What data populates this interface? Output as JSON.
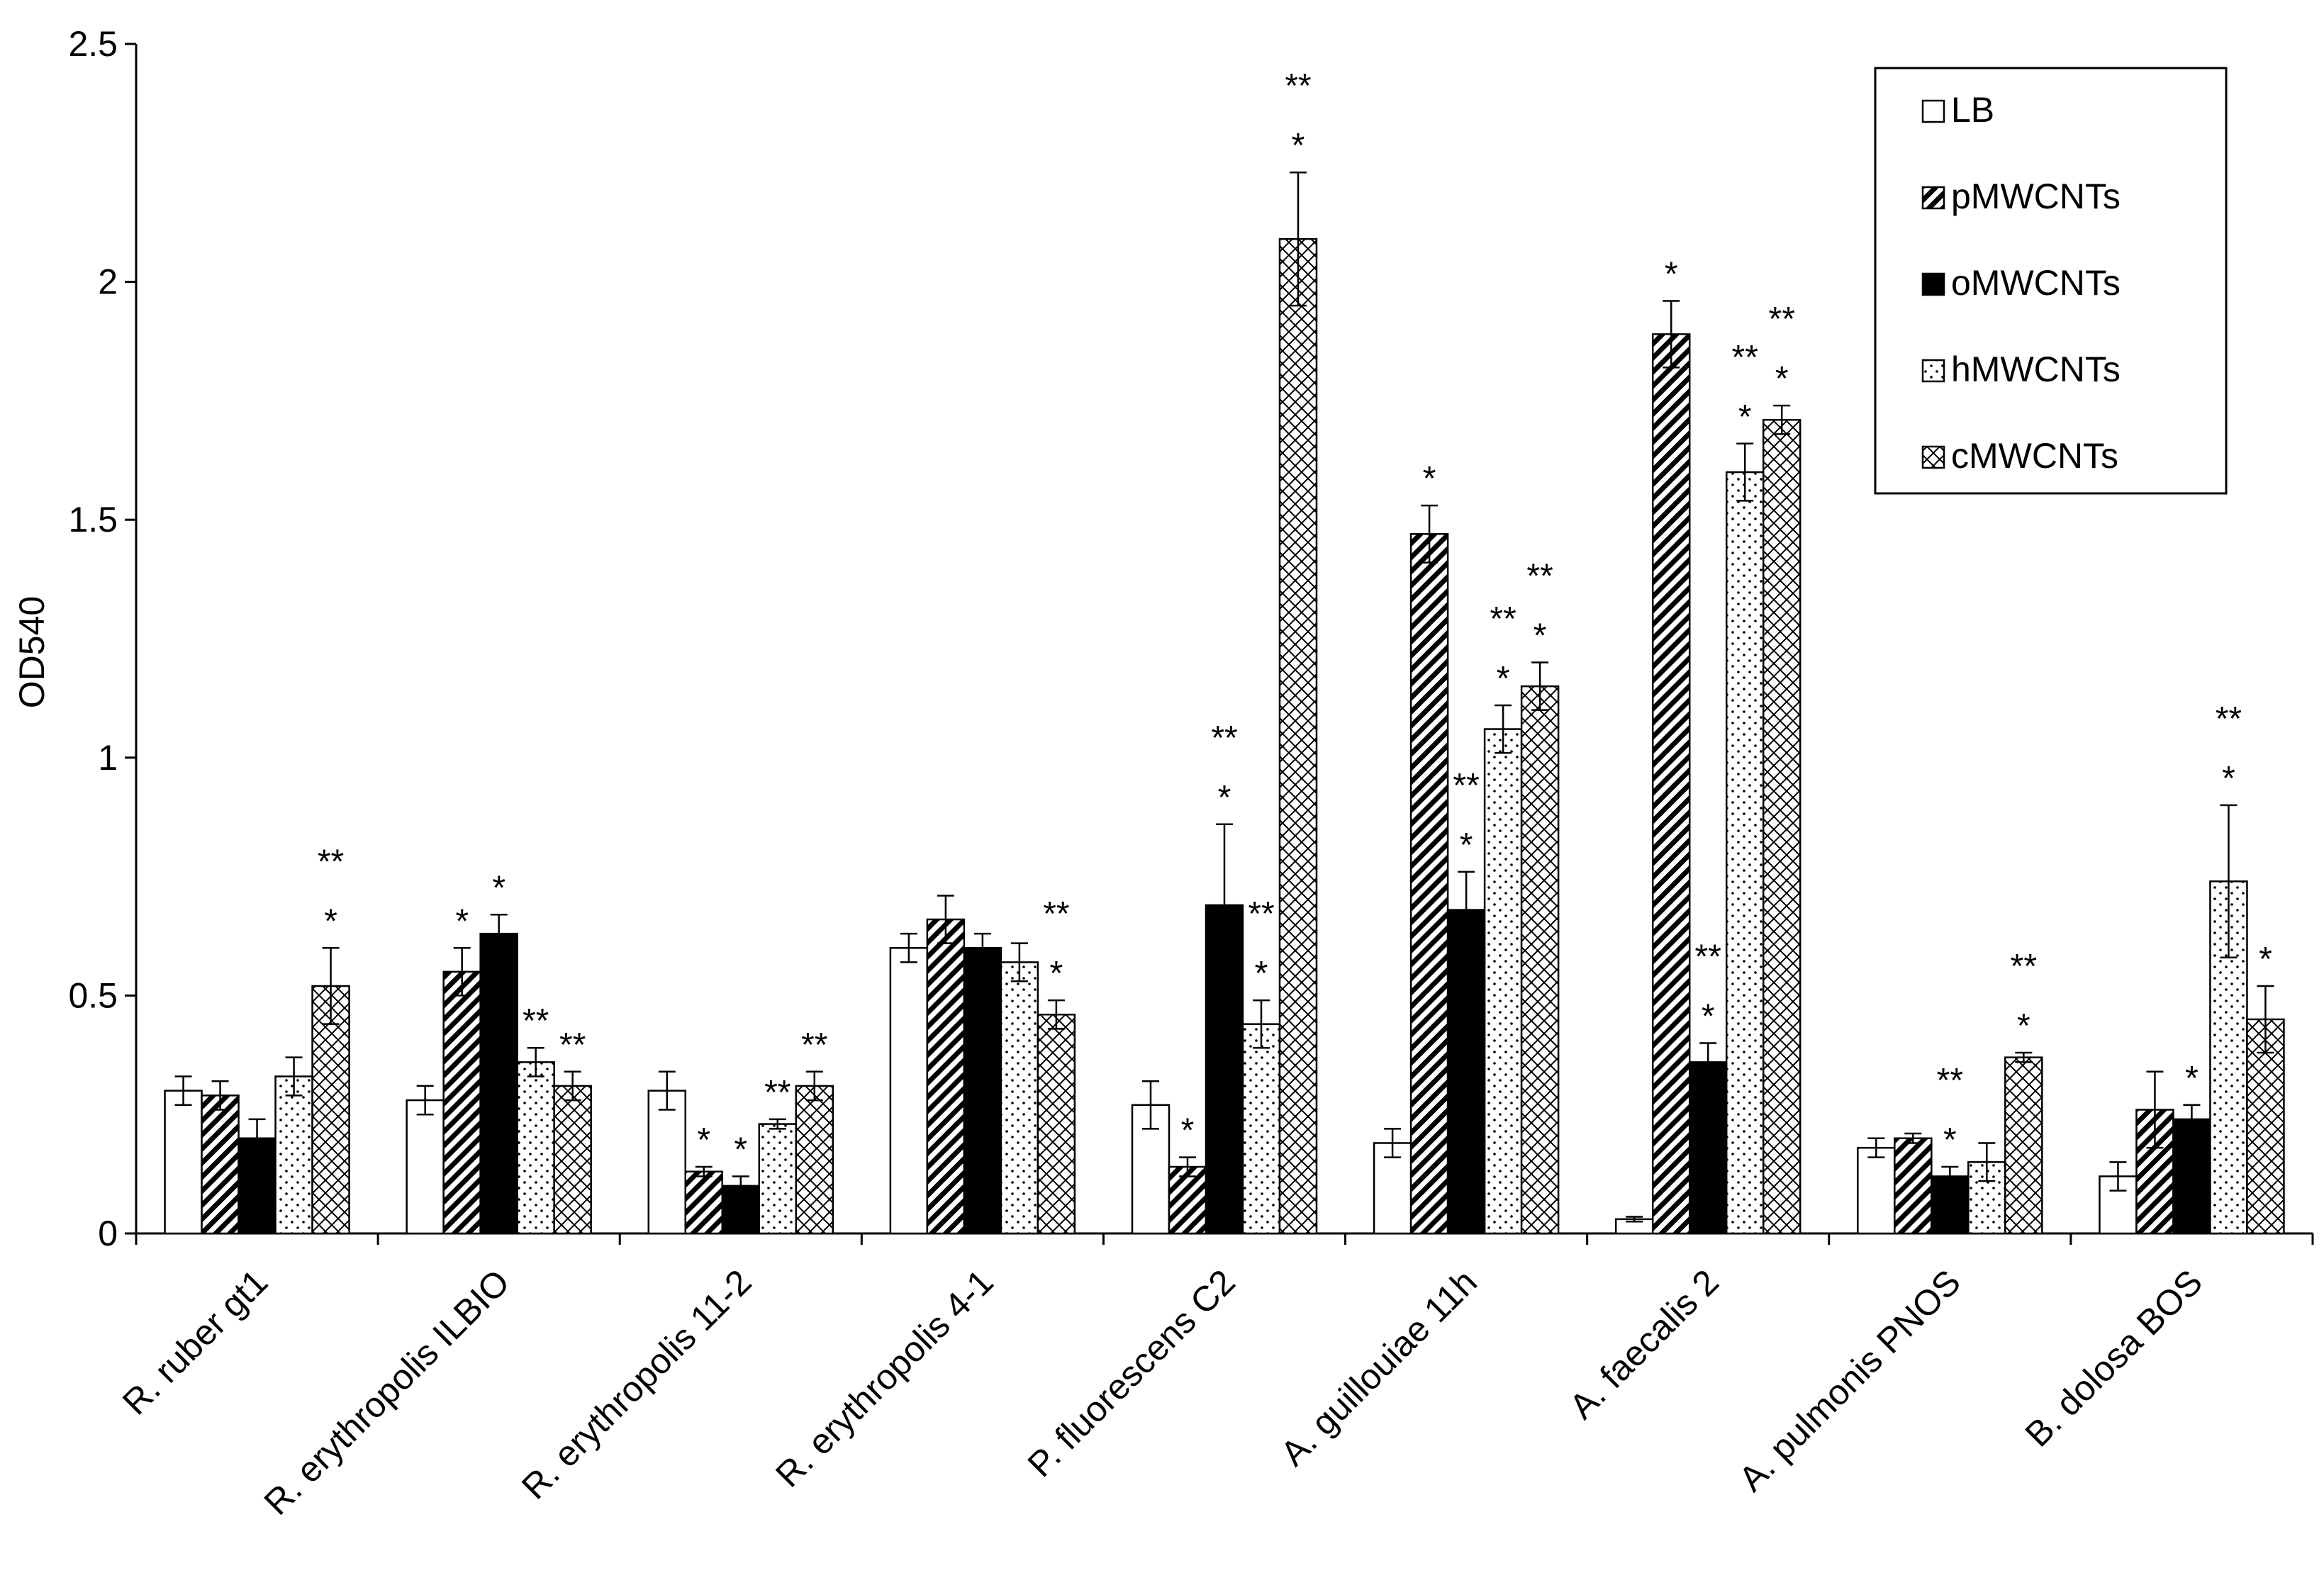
{
  "chart_data": {
    "type": "bar",
    "title": "",
    "xlabel": "",
    "ylabel": "OD540",
    "ylim": [
      0,
      2.5
    ],
    "yticks": [
      "0",
      "0.5",
      "1",
      "1.5",
      "2",
      "2.5"
    ],
    "ytick_values": [
      0,
      0.5,
      1,
      1.5,
      2,
      2.5
    ],
    "grid": false,
    "legend_position": "top-right",
    "categories": [
      "R. ruber gt1",
      "R. erythropolis ILBIO",
      "R. erythropolis 11-2",
      "R. erythropolis 4-1",
      "P. fluorescens C2",
      "A. guillouiae 11h",
      "A. faecalis 2",
      "A. pulmonis PNOS",
      "B. dolosa BOS"
    ],
    "series": [
      {
        "name": "LB",
        "pattern": "white",
        "values": [
          0.3,
          0.28,
          0.3,
          0.6,
          0.27,
          0.19,
          0.03,
          0.18,
          0.12
        ],
        "errors": [
          0.03,
          0.03,
          0.04,
          0.03,
          0.05,
          0.03,
          0.005,
          0.02,
          0.03
        ],
        "sig": [
          "",
          "",
          "",
          "",
          "",
          "",
          "",
          "",
          ""
        ]
      },
      {
        "name": "pMWCNTs",
        "pattern": "diagonal",
        "values": [
          0.29,
          0.55,
          0.13,
          0.66,
          0.14,
          1.47,
          1.89,
          0.2,
          0.26
        ],
        "errors": [
          0.03,
          0.05,
          0.01,
          0.05,
          0.02,
          0.06,
          0.07,
          0.01,
          0.08
        ],
        "sig": [
          "",
          "*",
          "*",
          "",
          "*",
          "*",
          "*",
          "",
          ""
        ]
      },
      {
        "name": "oMWCNTs",
        "pattern": "black",
        "values": [
          0.2,
          0.63,
          0.1,
          0.6,
          0.69,
          0.68,
          0.36,
          0.12,
          0.24
        ],
        "errors": [
          0.04,
          0.04,
          0.02,
          0.03,
          0.17,
          0.08,
          0.04,
          0.02,
          0.03
        ],
        "sig": [
          "",
          "*",
          "*",
          "",
          "**\n*",
          "**\n*",
          "**\n*",
          "**\n*",
          "*"
        ]
      },
      {
        "name": "hMWCNTs",
        "pattern": "dotted",
        "values": [
          0.33,
          0.36,
          0.23,
          0.57,
          0.44,
          1.06,
          1.6,
          0.15,
          0.74
        ],
        "errors": [
          0.04,
          0.03,
          0.01,
          0.04,
          0.05,
          0.05,
          0.06,
          0.04,
          0.16
        ],
        "sig": [
          "",
          "**",
          "**",
          "",
          "**\n*",
          "**\n*",
          "**\n*",
          "",
          "**\n*"
        ]
      },
      {
        "name": "cMWCNTs",
        "pattern": "crosshatch",
        "values": [
          0.52,
          0.31,
          0.31,
          0.46,
          2.09,
          1.15,
          1.71,
          0.37,
          0.45
        ],
        "errors": [
          0.08,
          0.03,
          0.03,
          0.03,
          0.14,
          0.05,
          0.03,
          0.01,
          0.07
        ],
        "sig": [
          "**\n*",
          "**",
          "**",
          "**\n*",
          "**\n*",
          "**\n*",
          "**\n*",
          "**\n*",
          "*"
        ]
      }
    ]
  }
}
